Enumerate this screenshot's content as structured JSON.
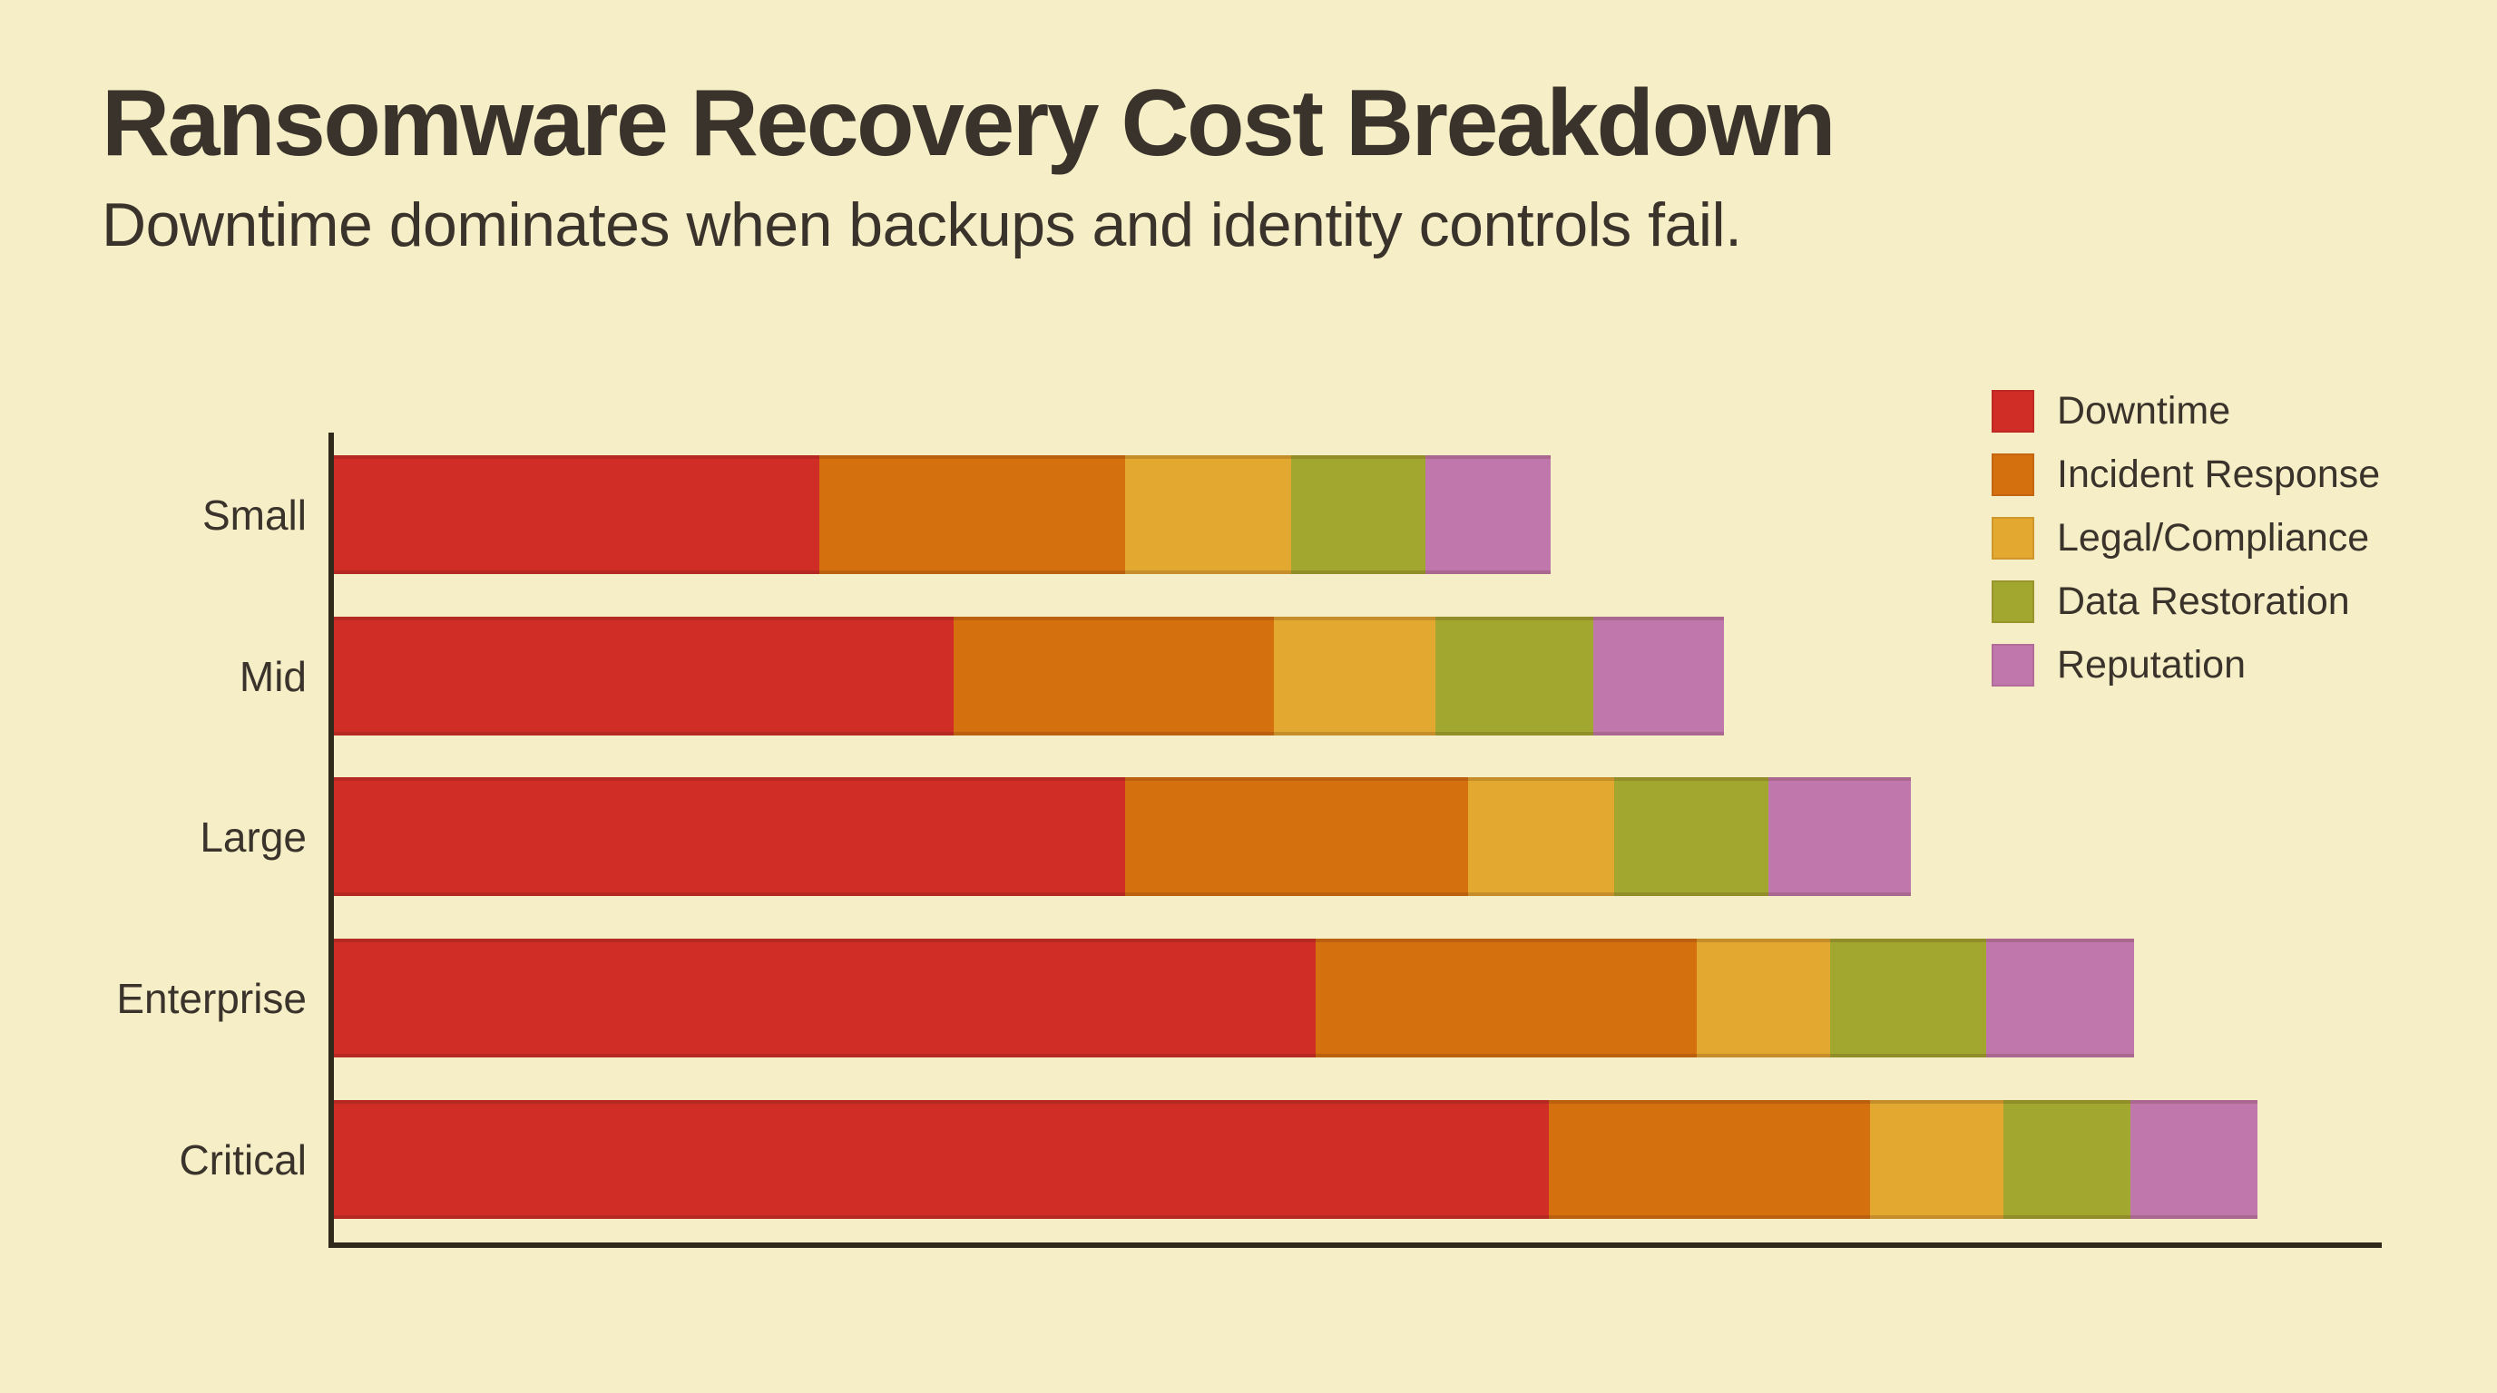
{
  "header": {
    "title": "Ransomware Recovery Cost Breakdown",
    "subtitle": "Downtime dominates when backups and identity controls fail."
  },
  "colors": {
    "background": "#f6eec6",
    "text": "#3a332b",
    "axis": "#30291c"
  },
  "chart_data": {
    "type": "bar",
    "orientation": "horizontal",
    "stacked": true,
    "title": "Ransomware Recovery Cost Breakdown",
    "subtitle": "Downtime dominates when backups and identity controls fail.",
    "categories": [
      "Small",
      "Mid",
      "Large",
      "Enterprise",
      "Critical"
    ],
    "series": [
      {
        "name": "Downtime",
        "color": "#cf2d26",
        "values": [
          25.2,
          32.2,
          41.1,
          51.0,
          63.1
        ]
      },
      {
        "name": "Incident Response",
        "color": "#d5700f",
        "values": [
          15.9,
          16.6,
          17.8,
          19.8,
          16.7
        ]
      },
      {
        "name": "Legal/Compliance",
        "color": "#e2a830",
        "values": [
          8.6,
          8.4,
          7.6,
          6.9,
          6.9
        ]
      },
      {
        "name": "Data Restoration",
        "color": "#a2a72f",
        "values": [
          7.0,
          8.2,
          8.0,
          8.1,
          6.6
        ]
      },
      {
        "name": "Reputation",
        "color": "#c078ac",
        "values": [
          6.5,
          6.8,
          7.4,
          7.7,
          6.6
        ]
      }
    ],
    "totals": [
      63.2,
      72.2,
      81.9,
      93.5,
      99.9
    ],
    "xlabel": "",
    "ylabel": "",
    "xlim": [
      0,
      106.6
    ],
    "grid": false,
    "axis_tick_labels_visible": false,
    "legend_position": "top-right",
    "legend_items": [
      "Downtime",
      "Incident Response",
      "Legal/Compliance",
      "Data Restoration",
      "Reputation"
    ]
  }
}
